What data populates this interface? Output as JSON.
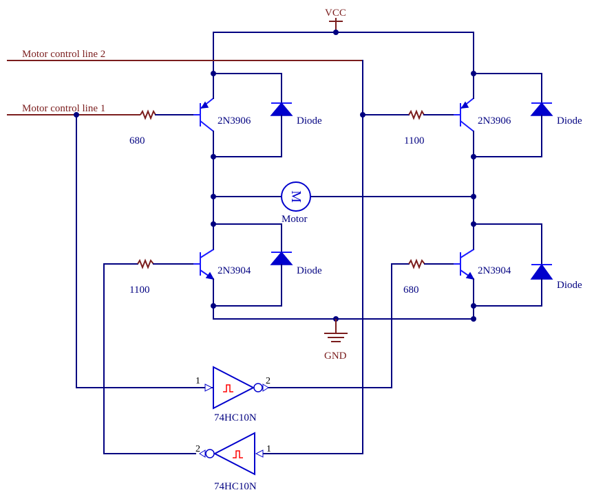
{
  "power": {
    "vcc": "VCC",
    "gnd": "GND"
  },
  "inputs": {
    "line2": "Motor control line 2",
    "line1": "Motor control line 1"
  },
  "transistors": {
    "q_top_left": "2N3906",
    "q_top_right": "2N3906",
    "q_bottom_left": "2N3904",
    "q_bottom_right": "2N3904"
  },
  "diodes": {
    "d_top_left": "Diode",
    "d_top_right": "Diode",
    "d_bottom_left": "Diode",
    "d_bottom_right": "Diode"
  },
  "resistors": {
    "r_top_left": "680",
    "r_top_right": "1100",
    "r_bottom_left": "1100",
    "r_bottom_right": "680"
  },
  "motor": {
    "symbol": "M",
    "label": "Motor"
  },
  "gates": {
    "u1": {
      "name": "74HC10N",
      "pin_in": "1",
      "pin_out": "2"
    },
    "u2": {
      "name": "74HC10N",
      "pin_in": "1",
      "pin_out": "2"
    }
  },
  "colors": {
    "wire": "#000080",
    "device": "#0000cc",
    "power": "#7a1c1c",
    "schmitt": "#ff0000"
  }
}
